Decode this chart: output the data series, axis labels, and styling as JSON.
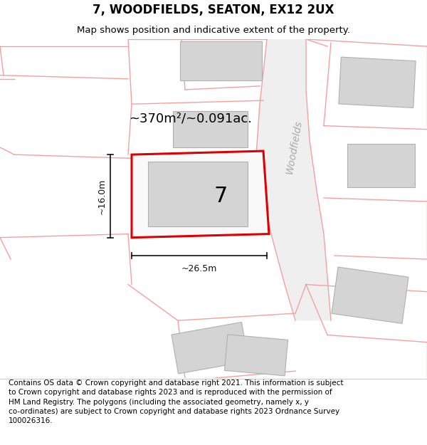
{
  "title": "7, WOODFIELDS, SEATON, EX12 2UX",
  "subtitle": "Map shows position and indicative extent of the property.",
  "footer": "Contains OS data © Crown copyright and database right 2021. This information is subject to Crown copyright and database rights 2023 and is reproduced with the permission of HM Land Registry. The polygons (including the associated geometry, namely x, y co-ordinates) are subject to Crown copyright and database rights 2023 Ordnance Survey 100026316.",
  "area_label": "~370m²/~0.091ac.",
  "number_label": "7",
  "dim_width": "~26.5m",
  "dim_height": "~16.0m",
  "road_label": "Woodfields",
  "bg_color": "#ffffff",
  "plot_color": "#dd0000",
  "building_fill": "#d4d4d4",
  "building_edge": "#b0b0b0",
  "pink": "#f5a0a0",
  "gray_road": "#e8e8e8",
  "dim_color": "#111111",
  "road_text_color": "#aaaaaa",
  "title_fs": 12,
  "subtitle_fs": 9.5,
  "footer_fs": 7.5,
  "area_fs": 13,
  "num_fs": 22,
  "dim_fs": 9,
  "road_fs": 10
}
